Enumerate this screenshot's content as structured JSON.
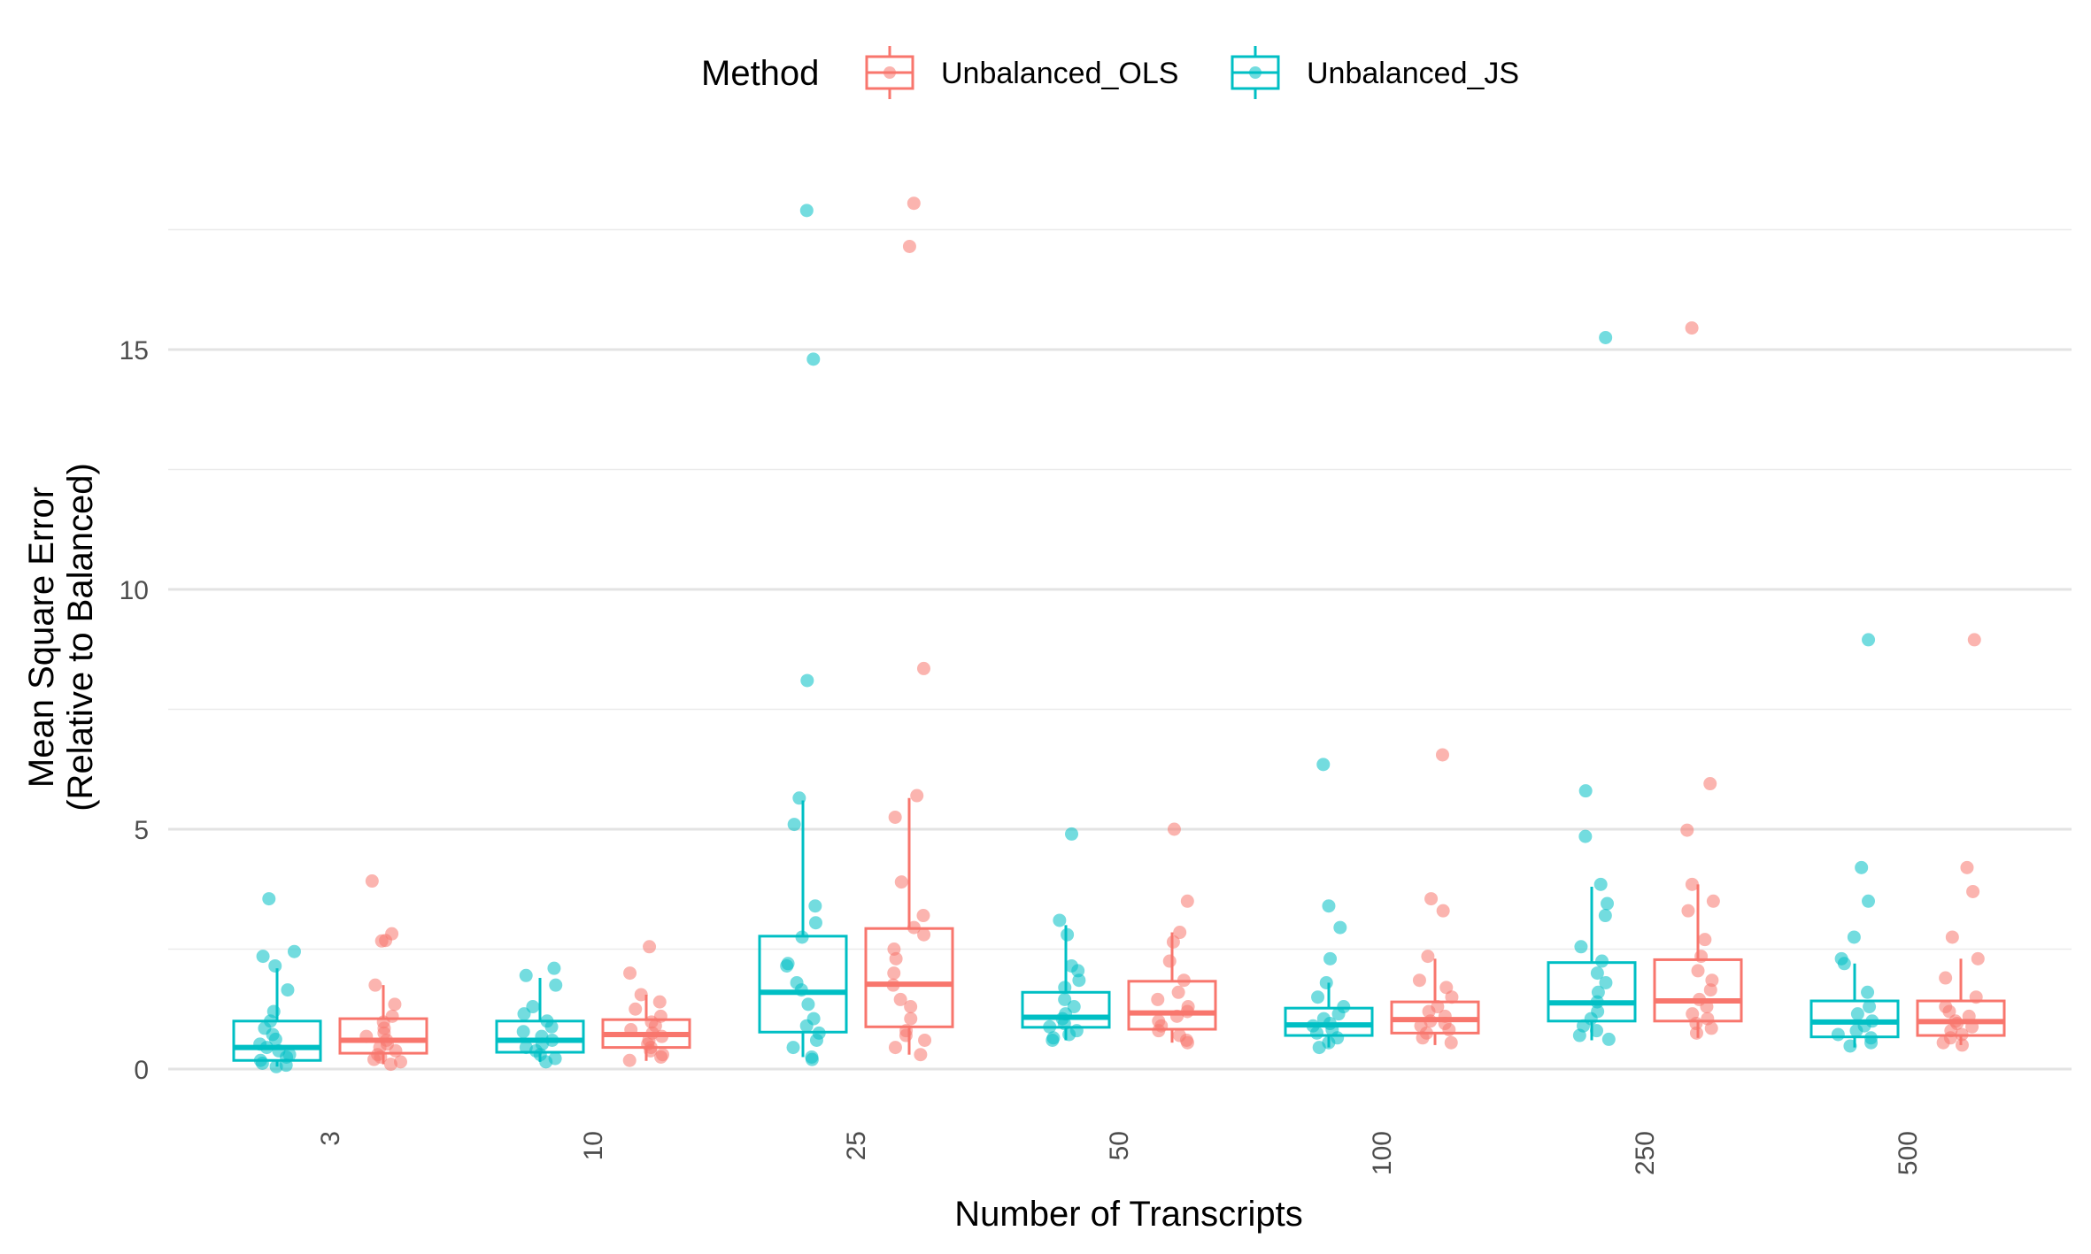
{
  "chart_data": {
    "type": "box",
    "xlabel": "Number of Transcripts",
    "ylabel_lines": [
      "Mean Square Error",
      "(Relative to Balanced)"
    ],
    "ylim": [
      -0.8,
      19
    ],
    "yticks": [
      0,
      5,
      10,
      15
    ],
    "grid": true,
    "legend": {
      "title": "Method",
      "position": "top"
    },
    "categories": [
      "3",
      "10",
      "25",
      "50",
      "100",
      "250",
      "500"
    ],
    "series": [
      {
        "name": "Unbalanced_OLS",
        "color": "#F8766D",
        "boxes": [
          {
            "min": 0.1,
            "q1": 0.33,
            "median": 0.6,
            "q3": 1.05,
            "max": 1.75
          },
          {
            "min": 0.17,
            "q1": 0.45,
            "median": 0.72,
            "q3": 1.03,
            "max": 1.55
          },
          {
            "min": 0.3,
            "q1": 0.88,
            "median": 1.77,
            "q3": 2.93,
            "max": 5.65
          },
          {
            "min": 0.55,
            "q1": 0.83,
            "median": 1.17,
            "q3": 1.83,
            "max": 2.85
          },
          {
            "min": 0.5,
            "q1": 0.75,
            "median": 1.03,
            "q3": 1.4,
            "max": 2.3
          },
          {
            "min": 0.65,
            "q1": 1.0,
            "median": 1.42,
            "q3": 2.28,
            "max": 3.85
          },
          {
            "min": 0.5,
            "q1": 0.7,
            "median": 0.99,
            "q3": 1.42,
            "max": 2.3
          }
        ],
        "points": [
          [
            3.92,
            2.82,
            2.68,
            2.67,
            1.75,
            1.35,
            1.1,
            0.98,
            0.85,
            0.75,
            0.68,
            0.6,
            0.52,
            0.45,
            0.38,
            0.3,
            0.25,
            0.2,
            0.15,
            0.1
          ],
          [
            2.55,
            2.0,
            1.55,
            1.4,
            1.25,
            1.1,
            0.98,
            0.9,
            0.82,
            0.75,
            0.68,
            0.6,
            0.52,
            0.45,
            0.38,
            0.3,
            0.25,
            0.18
          ],
          [
            18.05,
            17.15,
            8.35,
            5.7,
            5.25,
            3.9,
            3.2,
            2.95,
            2.8,
            2.5,
            2.3,
            2.0,
            1.75,
            1.45,
            1.3,
            1.05,
            0.8,
            0.7,
            0.6,
            0.45,
            0.3
          ],
          [
            5.0,
            3.5,
            2.85,
            2.65,
            2.25,
            1.85,
            1.6,
            1.45,
            1.3,
            1.2,
            1.1,
            1.0,
            0.9,
            0.8,
            0.7,
            0.6,
            0.55
          ],
          [
            6.55,
            3.55,
            3.3,
            2.35,
            1.85,
            1.7,
            1.5,
            1.3,
            1.2,
            1.1,
            1.0,
            0.95,
            0.9,
            0.82,
            0.75,
            0.65,
            0.55
          ],
          [
            15.45,
            5.95,
            4.98,
            3.85,
            3.5,
            3.3,
            2.7,
            2.35,
            2.05,
            1.85,
            1.65,
            1.45,
            1.3,
            1.15,
            1.05,
            0.95,
            0.85,
            0.75
          ],
          [
            8.95,
            4.2,
            3.7,
            2.75,
            2.3,
            1.9,
            1.5,
            1.3,
            1.2,
            1.1,
            1.0,
            0.95,
            0.88,
            0.8,
            0.72,
            0.65,
            0.55,
            0.5
          ]
        ]
      },
      {
        "name": "Unbalanced_JS",
        "color": "#00BFC4",
        "boxes": [
          {
            "min": 0.05,
            "q1": 0.18,
            "median": 0.45,
            "q3": 1.0,
            "max": 2.1
          },
          {
            "min": 0.15,
            "q1": 0.35,
            "median": 0.6,
            "q3": 1.0,
            "max": 1.9
          },
          {
            "min": 0.25,
            "q1": 0.77,
            "median": 1.6,
            "q3": 2.77,
            "max": 5.6
          },
          {
            "min": 0.6,
            "q1": 0.87,
            "median": 1.08,
            "q3": 1.6,
            "max": 3.0
          },
          {
            "min": 0.45,
            "q1": 0.7,
            "median": 0.92,
            "q3": 1.27,
            "max": 1.8
          },
          {
            "min": 0.6,
            "q1": 1.0,
            "median": 1.38,
            "q3": 2.22,
            "max": 3.8
          },
          {
            "min": 0.45,
            "q1": 0.67,
            "median": 0.98,
            "q3": 1.42,
            "max": 2.2
          }
        ],
        "points": [
          [
            3.55,
            2.45,
            2.35,
            2.15,
            1.65,
            1.2,
            1.0,
            0.85,
            0.72,
            0.62,
            0.52,
            0.45,
            0.38,
            0.3,
            0.25,
            0.18,
            0.12,
            0.08,
            0.05
          ],
          [
            2.1,
            1.95,
            1.75,
            1.3,
            1.15,
            1.0,
            0.88,
            0.78,
            0.68,
            0.6,
            0.52,
            0.45,
            0.38,
            0.3,
            0.22,
            0.15
          ],
          [
            17.9,
            14.8,
            8.1,
            5.65,
            5.1,
            3.4,
            3.05,
            2.75,
            2.2,
            2.15,
            1.8,
            1.65,
            1.35,
            1.05,
            0.9,
            0.75,
            0.6,
            0.45,
            0.25,
            0.2
          ],
          [
            4.9,
            3.1,
            2.8,
            2.15,
            2.05,
            1.85,
            1.7,
            1.45,
            1.3,
            1.15,
            1.05,
            0.95,
            0.88,
            0.8,
            0.72,
            0.65,
            0.6
          ],
          [
            6.35,
            3.4,
            2.95,
            2.3,
            1.8,
            1.5,
            1.3,
            1.15,
            1.05,
            0.95,
            0.9,
            0.82,
            0.75,
            0.65,
            0.55,
            0.45
          ],
          [
            15.25,
            5.8,
            4.85,
            3.85,
            3.45,
            3.2,
            2.55,
            2.25,
            2.0,
            1.8,
            1.6,
            1.4,
            1.2,
            1.05,
            0.9,
            0.8,
            0.7,
            0.62
          ],
          [
            8.95,
            4.2,
            3.5,
            2.75,
            2.3,
            2.2,
            1.6,
            1.3,
            1.15,
            1.0,
            0.9,
            0.8,
            0.72,
            0.65,
            0.55,
            0.48
          ]
        ]
      }
    ]
  }
}
